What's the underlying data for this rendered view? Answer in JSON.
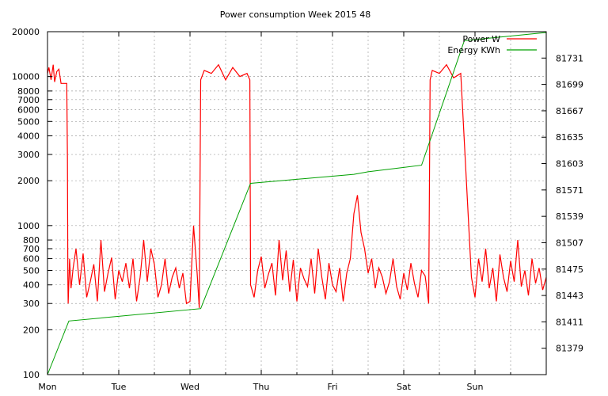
{
  "chart_data": {
    "type": "line",
    "title": "Power consumption Week 2015 48",
    "xlabel": "",
    "ylabel": "",
    "y2label": "",
    "x_ticks": [
      "Mon",
      "Tue",
      "Wed",
      "Thu",
      "Fri",
      "Sat",
      "Sun"
    ],
    "x_range_days": [
      0,
      7
    ],
    "y_scale": "log",
    "ylim": [
      100,
      20000
    ],
    "y_ticks": [
      100,
      200,
      300,
      400,
      500,
      600,
      700,
      800,
      1000,
      2000,
      3000,
      4000,
      5000,
      6000,
      7000,
      8000,
      10000,
      20000
    ],
    "y2lim": [
      81347,
      81763
    ],
    "y2_ticks": [
      81379,
      81411,
      81443,
      81475,
      81507,
      81539,
      81571,
      81603,
      81635,
      81667,
      81699,
      81731
    ],
    "grid": true,
    "legend_position": "top-right",
    "colors": {
      "power": "#ff0000",
      "energy": "#00a000",
      "grid": "#a0a0a0",
      "axis": "#000000"
    },
    "series": [
      {
        "name": "Power W",
        "axis": "y",
        "color": "#ff0000",
        "x": [
          0.0,
          0.02,
          0.05,
          0.08,
          0.1,
          0.13,
          0.16,
          0.19,
          0.22,
          0.25,
          0.27,
          0.28,
          0.285,
          0.29,
          0.3,
          0.31,
          0.33,
          0.36,
          0.4,
          0.45,
          0.5,
          0.55,
          0.6,
          0.65,
          0.7,
          0.75,
          0.8,
          0.85,
          0.9,
          0.95,
          1.0,
          1.05,
          1.1,
          1.15,
          1.2,
          1.25,
          1.3,
          1.35,
          1.4,
          1.45,
          1.5,
          1.55,
          1.6,
          1.65,
          1.7,
          1.75,
          1.8,
          1.85,
          1.9,
          1.95,
          2.0,
          2.05,
          2.1,
          2.13,
          2.15,
          2.2,
          2.3,
          2.4,
          2.5,
          2.6,
          2.7,
          2.8,
          2.84,
          2.85,
          2.9,
          2.95,
          3.0,
          3.05,
          3.1,
          3.15,
          3.2,
          3.25,
          3.3,
          3.35,
          3.4,
          3.45,
          3.5,
          3.55,
          3.6,
          3.65,
          3.7,
          3.75,
          3.8,
          3.85,
          3.9,
          3.95,
          4.0,
          4.05,
          4.1,
          4.15,
          4.2,
          4.25,
          4.3,
          4.35,
          4.4,
          4.45,
          4.5,
          4.55,
          4.6,
          4.65,
          4.7,
          4.75,
          4.8,
          4.85,
          4.9,
          4.95,
          5.0,
          5.05,
          5.1,
          5.15,
          5.2,
          5.25,
          5.3,
          5.35,
          5.37,
          5.4,
          5.5,
          5.6,
          5.7,
          5.8,
          5.95,
          6.0,
          6.05,
          6.1,
          6.15,
          6.2,
          6.25,
          6.3,
          6.35,
          6.4,
          6.45,
          6.5,
          6.55,
          6.6,
          6.65,
          6.7,
          6.75,
          6.8,
          6.85,
          6.9,
          6.95,
          7.0
        ],
        "values": [
          10500,
          11500,
          9500,
          12000,
          9200,
          10800,
          11200,
          9000,
          9000,
          9000,
          9000,
          2800,
          450,
          300,
          420,
          600,
          380,
          520,
          700,
          400,
          650,
          330,
          420,
          550,
          310,
          800,
          360,
          480,
          610,
          320,
          500,
          420,
          560,
          380,
          600,
          310,
          450,
          800,
          420,
          700,
          550,
          330,
          400,
          600,
          350,
          450,
          520,
          380,
          480,
          300,
          310,
          1000,
          480,
          280,
          9500,
          11000,
          10500,
          12000,
          9500,
          11500,
          10000,
          10500,
          9500,
          400,
          330,
          500,
          620,
          380,
          470,
          560,
          340,
          800,
          430,
          680,
          360,
          590,
          310,
          520,
          440,
          390,
          600,
          350,
          700,
          450,
          320,
          560,
          400,
          360,
          520,
          310,
          480,
          600,
          1200,
          1600,
          900,
          700,
          480,
          600,
          380,
          520,
          450,
          350,
          420,
          600,
          390,
          320,
          480,
          370,
          560,
          410,
          330,
          500,
          460,
          300,
          9500,
          11000,
          10500,
          12000,
          9800,
          10500,
          450,
          330,
          600,
          420,
          700,
          380,
          520,
          310,
          640,
          450,
          360,
          580,
          420,
          800,
          390,
          500,
          340,
          600,
          410,
          520,
          370,
          450
        ],
        "show_in_legend": true
      },
      {
        "name": "Energy KWh",
        "axis": "y2",
        "color": "#00a000",
        "x": [
          0.0,
          0.3,
          2.15,
          2.85,
          4.3,
          4.5,
          5.25,
          5.85,
          7.0
        ],
        "values": [
          81347,
          81412,
          81427,
          81579,
          81590,
          81593,
          81601,
          81752,
          81762
        ],
        "show_in_legend": true
      }
    ]
  }
}
